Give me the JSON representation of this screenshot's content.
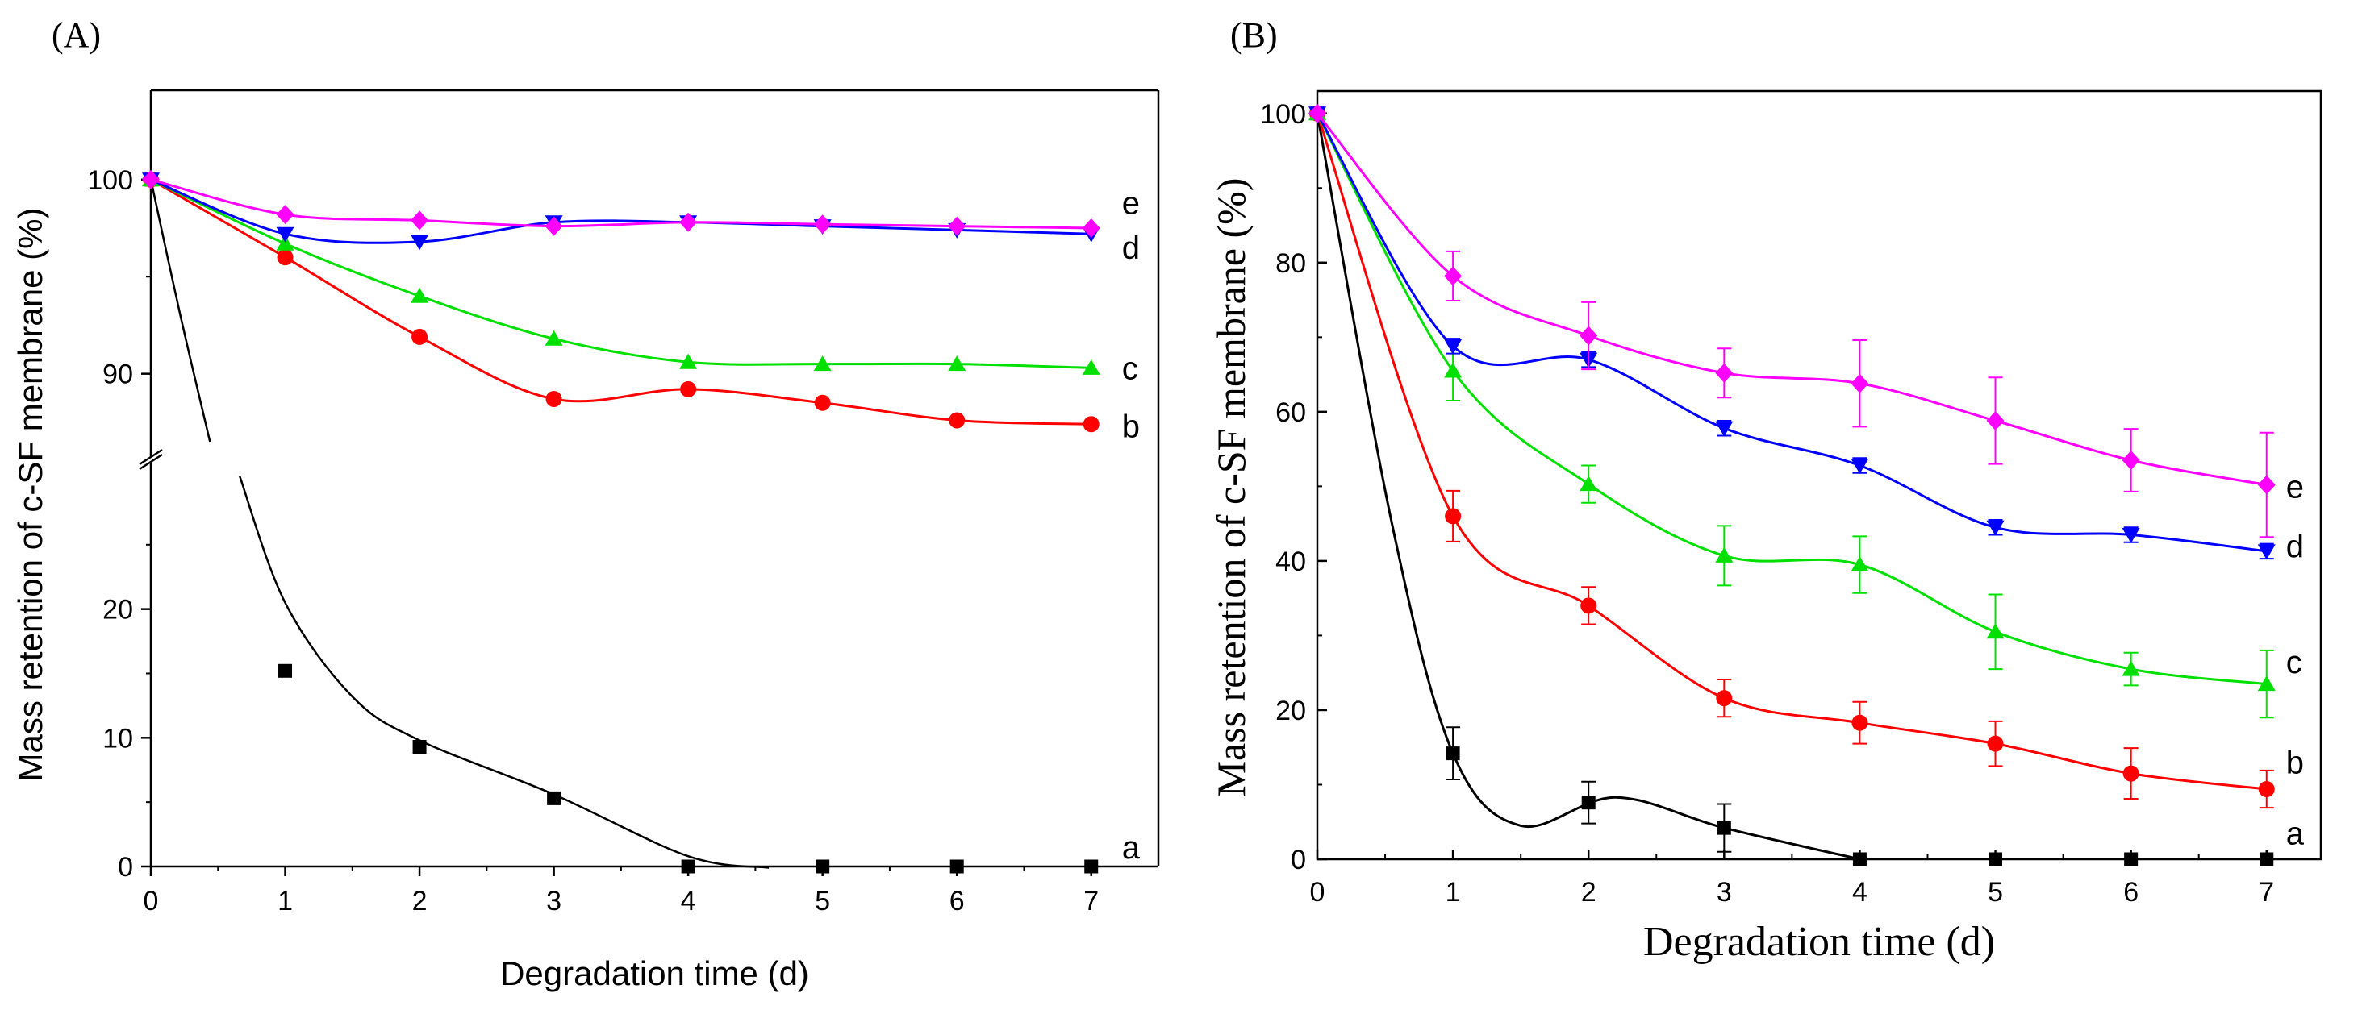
{
  "chart_data": [
    {
      "type": "line",
      "panel_label": "(A)",
      "xlabel": "Degradation time (d)",
      "ylabel": "Mass retention of c-SF membrane (%)",
      "x": [
        0,
        1,
        2,
        3,
        4,
        5,
        6,
        7
      ],
      "xlim": [
        0,
        7.5
      ],
      "xticks": [
        "0",
        "1",
        "2",
        "3",
        "4",
        "5",
        "6",
        "7"
      ],
      "y_axis_broken": true,
      "lower_ylim": [
        0,
        31
      ],
      "upper_ylim": [
        86,
        104.6
      ],
      "yticks_lower": [
        "0",
        "10",
        "20"
      ],
      "yticks_upper": [
        "90",
        "100"
      ],
      "series": [
        {
          "name": "a",
          "color": "#000000",
          "marker": "square",
          "values": [
            100,
            15.2,
            9.3,
            5.3,
            0,
            0,
            0,
            0
          ]
        },
        {
          "name": "b",
          "color": "#ff0000",
          "marker": "circle",
          "values": [
            100,
            96.0,
            91.9,
            88.7,
            89.2,
            88.5,
            87.6,
            87.4
          ]
        },
        {
          "name": "c",
          "color": "#00e000",
          "marker": "triangle-up",
          "values": [
            100,
            96.7,
            94.0,
            91.8,
            90.6,
            90.5,
            90.5,
            90.3
          ]
        },
        {
          "name": "d",
          "color": "#0000ff",
          "marker": "triangle-down",
          "values": [
            100,
            97.2,
            96.8,
            97.8,
            97.8,
            97.6,
            97.4,
            97.2
          ]
        },
        {
          "name": "e",
          "color": "#ff00ff",
          "marker": "diamond",
          "values": [
            100,
            98.2,
            97.9,
            97.6,
            97.8,
            97.7,
            97.6,
            97.5
          ]
        }
      ]
    },
    {
      "type": "line",
      "panel_label": "(B)",
      "xlabel": "Degradation time (d)",
      "ylabel": "Mass retention of c-SF membrane (%)",
      "x": [
        0,
        1,
        2,
        3,
        4,
        5,
        6,
        7
      ],
      "xlim": [
        0,
        7.4
      ],
      "ylim": [
        0,
        103
      ],
      "xticks": [
        "0",
        "1",
        "2",
        "3",
        "4",
        "5",
        "6",
        "7"
      ],
      "yticks": [
        "0",
        "20",
        "40",
        "60",
        "80",
        "100"
      ],
      "series": [
        {
          "name": "a",
          "color": "#000000",
          "marker": "square",
          "values": [
            100,
            14.2,
            7.6,
            4.2,
            0,
            0,
            0,
            0
          ],
          "errors": [
            0,
            3.5,
            2.8,
            3.2,
            0,
            0,
            0,
            0
          ]
        },
        {
          "name": "b",
          "color": "#ff0000",
          "marker": "circle",
          "values": [
            100,
            46.0,
            34.0,
            21.6,
            18.3,
            15.5,
            11.5,
            9.4
          ],
          "errors": [
            0,
            3.4,
            2.5,
            2.5,
            2.8,
            3.0,
            3.4,
            2.5
          ]
        },
        {
          "name": "c",
          "color": "#00e000",
          "marker": "triangle-up",
          "values": [
            100,
            65.5,
            50.3,
            40.7,
            39.5,
            30.5,
            25.5,
            23.5
          ],
          "errors": [
            0,
            4.0,
            2.5,
            4.0,
            3.8,
            5.0,
            2.2,
            4.5
          ]
        },
        {
          "name": "d",
          "color": "#0000ff",
          "marker": "triangle-down",
          "values": [
            100,
            68.8,
            67.0,
            57.8,
            52.8,
            44.5,
            43.5,
            41.3
          ],
          "errors": [
            0,
            1.0,
            1.0,
            1.0,
            1.0,
            1.0,
            1.0,
            1.0
          ]
        },
        {
          "name": "e",
          "color": "#ff00ff",
          "marker": "diamond",
          "values": [
            100,
            78.2,
            70.2,
            65.2,
            63.8,
            58.8,
            53.5,
            50.2
          ],
          "errors": [
            0,
            3.3,
            4.5,
            3.3,
            5.8,
            5.8,
            4.2,
            7.0
          ]
        }
      ]
    }
  ]
}
